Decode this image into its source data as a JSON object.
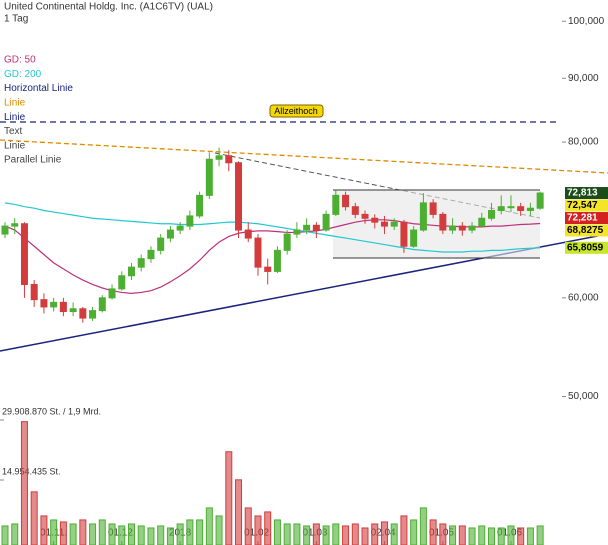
{
  "chart_data": {
    "type": "candlestick",
    "title": "United Continental Holdg. Inc. (A1C6TV) (UAL)",
    "subtitle": "1 Tag",
    "log_scale": true,
    "ylim": [
      49.5,
      104
    ],
    "yticks": [
      {
        "value": 100,
        "label": "100,000"
      },
      {
        "value": 90,
        "label": "90,000"
      },
      {
        "value": 80,
        "label": "80,000"
      },
      {
        "value": 60,
        "label": "60,000"
      },
      {
        "value": 50,
        "label": "50,000"
      }
    ],
    "categories": [
      null,
      null,
      null,
      null,
      null,
      "01.11.",
      null,
      null,
      null,
      null,
      null,
      null,
      "01.12.",
      null,
      null,
      null,
      null,
      null,
      "2018",
      null,
      null,
      null,
      null,
      null,
      null,
      null,
      "01.02.",
      null,
      null,
      null,
      null,
      null,
      "01.03.",
      null,
      null,
      null,
      null,
      null,
      null,
      "02.04.",
      null,
      null,
      null,
      null,
      null,
      "01.05.",
      null,
      null,
      null,
      null,
      null,
      null,
      "01.06.",
      null,
      null,
      null
    ],
    "open": [
      67.5,
      68.5,
      68.8,
      61.5,
      59.8,
      59,
      59.5,
      58.5,
      58.8,
      57.8,
      58.6,
      60,
      61,
      62.5,
      63.5,
      64.5,
      65.5,
      67,
      68,
      68.5,
      69.8,
      72.5,
      77.5,
      78,
      77,
      68,
      67,
      63.5,
      63,
      65.5,
      67.5,
      68,
      68.6,
      68,
      70,
      72.5,
      71,
      70,
      69.5,
      69,
      68.5,
      69,
      66,
      68,
      71.5,
      70,
      68,
      68.5,
      68,
      68.5,
      69.5,
      70.5,
      71,
      71,
      70.5,
      70.8
    ],
    "high": [
      69,
      69.5,
      69,
      62,
      60.5,
      60,
      60,
      59.5,
      59,
      59,
      60.3,
      61.5,
      63,
      64,
      65,
      66,
      67.5,
      68.5,
      69,
      70.5,
      73,
      78.5,
      79.2,
      78.8,
      77.2,
      69,
      67.5,
      64.5,
      66,
      68,
      69,
      69.5,
      69,
      70.5,
      73.2,
      73,
      71.5,
      70.5,
      70,
      69.8,
      69.5,
      69.3,
      68.5,
      72.8,
      72,
      70.3,
      69.5,
      69,
      69,
      70.2,
      71.5,
      72.5,
      72.5,
      71.5,
      71.5,
      73
    ],
    "low": [
      67,
      67.5,
      60,
      59,
      58.3,
      58.5,
      58,
      58,
      57.3,
      57.5,
      58.4,
      59.8,
      60.8,
      62,
      63,
      64,
      65,
      66.5,
      67.5,
      68,
      69.5,
      72,
      76.5,
      75.8,
      67,
      66.5,
      62.5,
      61.5,
      62.8,
      65,
      67,
      67.5,
      67,
      67.8,
      69.8,
      70.5,
      69.5,
      68.8,
      68.2,
      67.5,
      68,
      65.2,
      65.8,
      67.8,
      69.5,
      67.5,
      67.5,
      67.3,
      67.6,
      68.3,
      69.2,
      70,
      70.3,
      69.8,
      69.8,
      70.6
    ],
    "close": [
      68.5,
      68.8,
      61.5,
      59.8,
      59,
      59.5,
      58.5,
      58.8,
      57.8,
      58.6,
      60,
      61,
      62.5,
      63.5,
      64.5,
      65.5,
      67,
      68,
      68.5,
      69.8,
      72.5,
      77.5,
      78,
      77,
      68,
      67,
      63.5,
      63,
      65.5,
      67.5,
      68,
      68.6,
      68,
      70,
      72.5,
      71,
      70,
      69.5,
      69,
      68.5,
      69,
      66,
      68,
      71.5,
      70,
      68,
      68.5,
      68,
      68.5,
      69.5,
      70.5,
      71,
      71,
      70.5,
      70.8,
      72.813
    ],
    "up_color": "#4caf32",
    "down_color": "#d23c3c",
    "series": [
      {
        "name": "GD: 50",
        "color": "#c0307a",
        "values": [
          68.5,
          68,
          67,
          66,
          65,
          64,
          63.3,
          62.6,
          62,
          61.5,
          61.1,
          60.8,
          60.6,
          60.5,
          60.6,
          60.8,
          61.2,
          61.8,
          62.5,
          63.3,
          64.3,
          65.5,
          66.5,
          67.2,
          67.6,
          67.8,
          67.9,
          67.9,
          67.8,
          67.7,
          67.7,
          67.8,
          67.9,
          68.1,
          68.4,
          68.7,
          69,
          69.2,
          69.3,
          69.3,
          69.2,
          69,
          68.8,
          68.7,
          68.6,
          68.5,
          68.5,
          68.4,
          68.4,
          68.4,
          68.5,
          68.5,
          68.6,
          68.7,
          68.75,
          68.8275
        ]
      },
      {
        "name": "GD: 200",
        "color": "#22c8d0",
        "values": [
          71.5,
          71.3,
          71,
          70.8,
          70.5,
          70.3,
          70.1,
          69.9,
          69.7,
          69.5,
          69.4,
          69.3,
          69.2,
          69.1,
          69,
          68.9,
          68.8,
          68.8,
          68.7,
          68.7,
          68.7,
          68.8,
          68.9,
          69,
          69,
          68.9,
          68.8,
          68.6,
          68.4,
          68.2,
          68,
          67.8,
          67.6,
          67.4,
          67.2,
          67,
          66.8,
          66.6,
          66.4,
          66.2,
          66,
          65.8,
          65.6,
          65.5,
          65.4,
          65.3,
          65.3,
          65.3,
          65.4,
          65.4,
          65.5,
          65.5,
          65.6,
          65.7,
          65.75,
          65.8059
        ]
      }
    ],
    "drawings_legend": [
      {
        "label": "Horizontal Linie",
        "color": "#1a237e"
      },
      {
        "label": "Linie",
        "color": "#e08a00"
      },
      {
        "label": "Linie",
        "color": "#1a237e"
      },
      {
        "label": "Text",
        "color": "#444444"
      },
      {
        "label": "Linie",
        "color": "#444444"
      },
      {
        "label": "Parallel Linie",
        "color": "#444444"
      }
    ],
    "annotation": "Allzeithoch",
    "price_markers": [
      {
        "value": 72.813,
        "label": "72,813",
        "color": "#1b4d1b",
        "text_color": "#ffffff"
      },
      {
        "value": 72.547,
        "label": "72,547",
        "color": "#f5e52a",
        "text_color": "#000000"
      },
      {
        "value": 72.281,
        "label": "72,281",
        "color": "#d32020",
        "text_color": "#ffffff"
      },
      {
        "value": 68.8275,
        "label": "68,8275",
        "color": "#f5e52a",
        "text_color": "#000000"
      },
      {
        "value": 65.8059,
        "label": "65,8059",
        "color": "#c8e62a",
        "text_color": "#000000"
      }
    ],
    "volume": [
      3500000,
      4000000,
      29500000,
      12000000,
      6000000,
      5000000,
      4500000,
      4000000,
      5000000,
      4000000,
      5000000,
      4000000,
      3500000,
      4000000,
      3500000,
      3000000,
      3500000,
      3000000,
      4000000,
      5000000,
      5000000,
      8000000,
      6000000,
      22000000,
      15000000,
      8000000,
      6000000,
      7000000,
      5000000,
      4000000,
      4000000,
      3500000,
      4000000,
      3500000,
      4000000,
      3500000,
      4000000,
      3000000,
      4000000,
      4500000,
      4000000,
      6000000,
      5000000,
      8000000,
      5000000,
      4000000,
      3500000,
      3500000,
      3000000,
      3500000,
      3000000,
      3000000,
      3500000,
      3000000,
      3000000,
      3500000
    ],
    "vlim": [
      0,
      30000000
    ],
    "vticks": [
      {
        "value": 29908870,
        "label": "29.908.870 St. / 1,9 Mrd."
      },
      {
        "value": 14954435,
        "label": "14.954.435 St."
      }
    ]
  }
}
